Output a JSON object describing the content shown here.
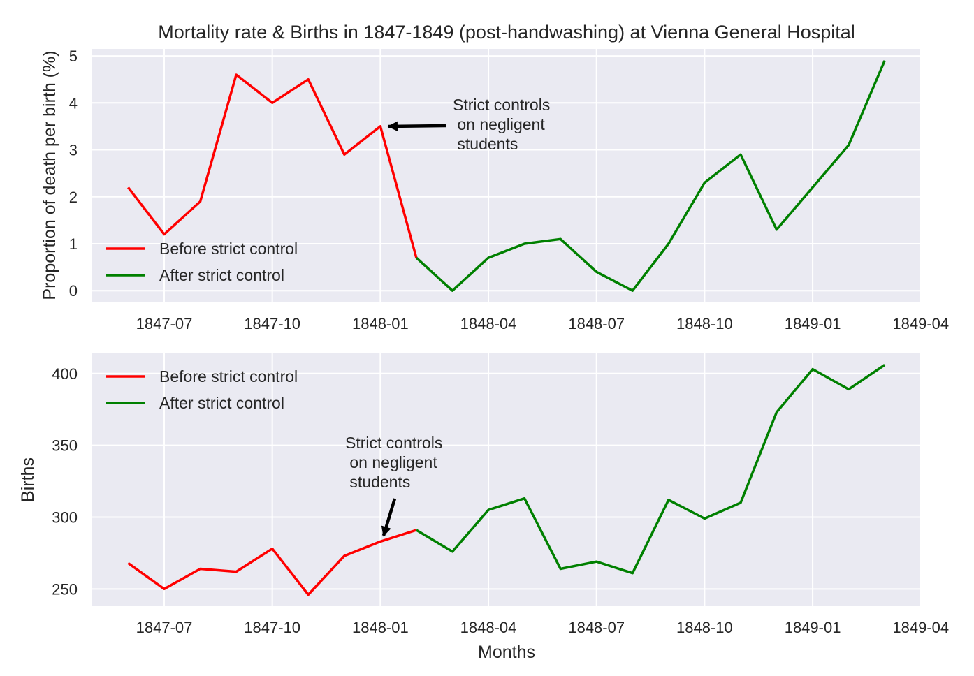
{
  "colors": {
    "before": "#ff0000",
    "after": "#008000",
    "axes_bg": "#eaeaf2",
    "grid": "#ffffff",
    "arrow": "#000000"
  },
  "chart_data": [
    {
      "type": "line",
      "title": "Mortality rate & Births in 1847-1849 (post-handwashing) at Vienna General Hospital",
      "xlabel": "",
      "ylabel": "Proportion of death per birth (%)",
      "x_ticks": [
        "1847-07",
        "1847-10",
        "1848-01",
        "1848-04",
        "1848-07",
        "1848-10",
        "1849-01",
        "1849-04"
      ],
      "y_ticks": [
        "0",
        "1",
        "2",
        "3",
        "4",
        "5"
      ],
      "ylim": [
        -0.25,
        5.15
      ],
      "grid": true,
      "legend_position": "lower-left",
      "series": [
        {
          "name": "Before strict control",
          "color": "#ff0000",
          "x": [
            "1847-06",
            "1847-07",
            "1847-08",
            "1847-09",
            "1847-10",
            "1847-11",
            "1847-12",
            "1848-01",
            "1848-02"
          ],
          "values": [
            2.2,
            1.2,
            1.9,
            4.6,
            4.0,
            4.5,
            2.9,
            3.5,
            0.7
          ]
        },
        {
          "name": "After strict control",
          "color": "#008000",
          "x": [
            "1848-02",
            "1848-03",
            "1848-04",
            "1848-05",
            "1848-06",
            "1848-07",
            "1848-08",
            "1848-09",
            "1848-10",
            "1848-11",
            "1848-12",
            "1849-01",
            "1849-02",
            "1849-03"
          ],
          "values": [
            0.7,
            0.0,
            0.7,
            1.0,
            1.1,
            0.4,
            0.0,
            1.0,
            2.3,
            2.9,
            1.3,
            2.2,
            3.1,
            4.9
          ]
        }
      ],
      "annotation": {
        "lines": [
          "Strict controls",
          " on negligent",
          " students"
        ],
        "target_x": "1848-01",
        "target_y": 3.5
      }
    },
    {
      "type": "line",
      "title": "",
      "xlabel": "Months",
      "ylabel": "Births",
      "x_ticks": [
        "1847-07",
        "1847-10",
        "1848-01",
        "1848-04",
        "1848-07",
        "1848-10",
        "1849-01",
        "1849-04"
      ],
      "y_ticks": [
        "250",
        "300",
        "350",
        "400"
      ],
      "ylim": [
        238,
        414
      ],
      "grid": true,
      "legend_position": "upper-left",
      "series": [
        {
          "name": "Before strict control",
          "color": "#ff0000",
          "x": [
            "1847-06",
            "1847-07",
            "1847-08",
            "1847-09",
            "1847-10",
            "1847-11",
            "1847-12",
            "1848-01",
            "1848-02"
          ],
          "values": [
            268,
            250,
            264,
            262,
            278,
            246,
            273,
            283,
            291
          ]
        },
        {
          "name": "After strict control",
          "color": "#008000",
          "x": [
            "1848-02",
            "1848-03",
            "1848-04",
            "1848-05",
            "1848-06",
            "1848-07",
            "1848-08",
            "1848-09",
            "1848-10",
            "1848-11",
            "1848-12",
            "1849-01",
            "1849-02",
            "1849-03"
          ],
          "values": [
            291,
            276,
            305,
            313,
            264,
            269,
            261,
            312,
            299,
            310,
            373,
            403,
            389,
            406
          ]
        }
      ],
      "annotation": {
        "lines": [
          "Strict controls",
          " on negligent",
          " students"
        ],
        "target_x": "1848-01",
        "target_y": 283
      }
    }
  ]
}
